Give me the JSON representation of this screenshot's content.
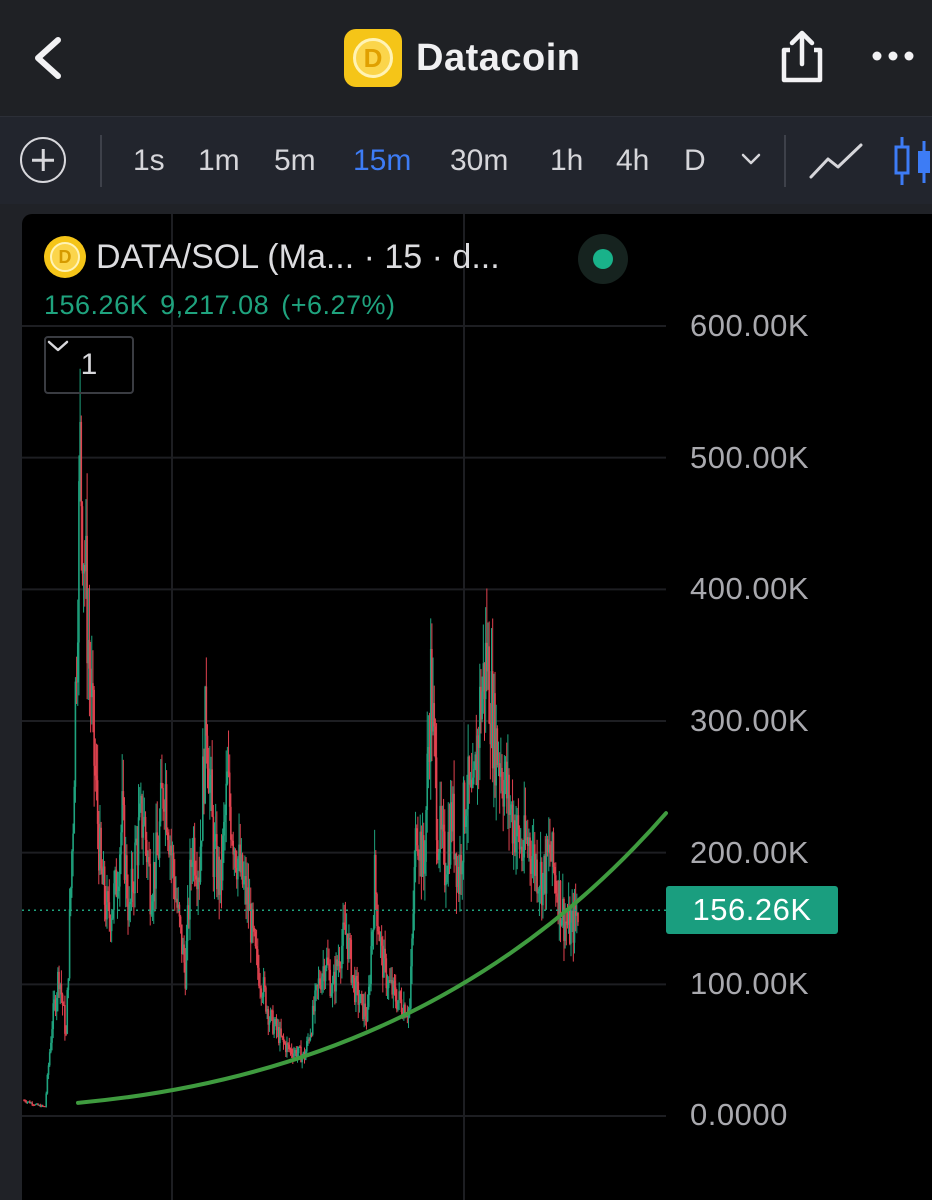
{
  "header": {
    "title": "Datacoin",
    "logo_letter": "D"
  },
  "toolbar": {
    "timeframes": [
      "1s",
      "1m",
      "5m",
      "15m",
      "30m",
      "1h",
      "4h",
      "D"
    ],
    "active_timeframe": "15m"
  },
  "chart_header": {
    "pair_label": "DATA/SOL (Ma...  · 15 · d...",
    "logo_letter": "D",
    "last_value": "156.26K",
    "change_value": "9,217.08",
    "change_percent": "(+6.27%)",
    "indicator_toggle_count": "1",
    "status_color": "#19b28a"
  },
  "colors": {
    "up": "#1fa37e",
    "down": "#e0424f",
    "trendline": "#3f9b3f",
    "active_tab": "#3d7cf5"
  },
  "chart_data": {
    "type": "candlestick",
    "y_ticks": [
      "600.00K",
      "500.00K",
      "400.00K",
      "300.00K",
      "200.00K",
      "100.00K",
      "0.0000"
    ],
    "y_range": [
      0,
      600000
    ],
    "current_price_label": "156.26K",
    "current_price": 156260,
    "price_series": [
      12000,
      10000,
      8000,
      7000,
      70000,
      110000,
      60000,
      230000,
      500000,
      380000,
      270000,
      180000,
      150000,
      170000,
      225000,
      150000,
      205000,
      230000,
      175000,
      195000,
      260000,
      200000,
      150000,
      110000,
      210000,
      190000,
      310000,
      200000,
      175000,
      250000,
      210000,
      180000,
      160000,
      120000,
      100000,
      75000,
      65000,
      55000,
      50000,
      48000,
      45000,
      70000,
      100000,
      120000,
      95000,
      125000,
      140000,
      100000,
      85000,
      75000,
      180000,
      120000,
      100000,
      90000,
      85000,
      80000,
      230000,
      185000,
      330000,
      220000,
      190000,
      230000,
      180000,
      250000,
      230000,
      310000,
      350000,
      290000,
      270000,
      240000,
      220000,
      200000,
      210000,
      190000,
      180000,
      200000,
      175000,
      150000,
      140000,
      156260
    ],
    "trendline": "rising curve from the early low to the latest candle",
    "grid": true
  }
}
